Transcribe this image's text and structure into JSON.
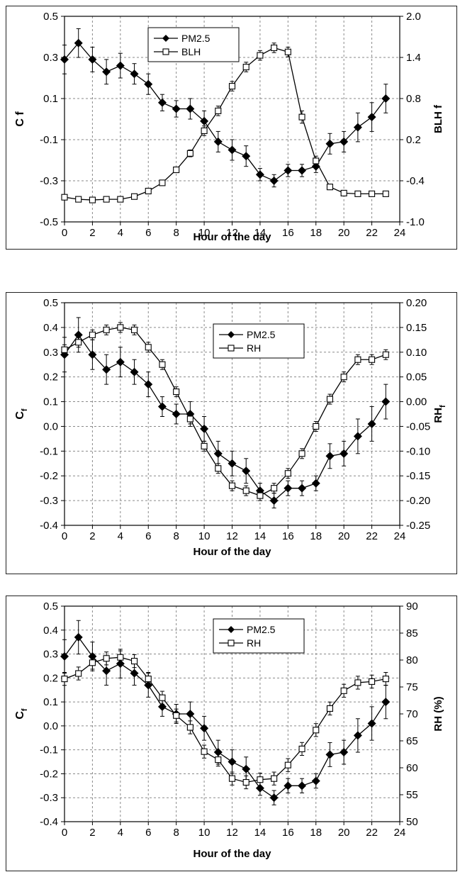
{
  "chart_data": [
    {
      "type": "line",
      "xlabel": "Hour of the day",
      "ylabel": "C f",
      "ylabel_sub": "",
      "y2label": "BLH f",
      "y2label_sub": "",
      "xlim": [
        0,
        24
      ],
      "ylim": [
        -0.5,
        0.5
      ],
      "y2lim": [
        -1.0,
        2.0
      ],
      "xticks": [
        "0",
        "2",
        "4",
        "6",
        "8",
        "10",
        "12",
        "14",
        "16",
        "18",
        "20",
        "22",
        "24"
      ],
      "yticks": [
        "-0.5",
        "-0.3",
        "-0.1",
        "0.1",
        "0.3",
        "0.5"
      ],
      "y2ticks": [
        "-1.0",
        "-0.4",
        "0.2",
        "0.8",
        "1.4",
        "2.0"
      ],
      "grid": true,
      "legend": "top-center",
      "series": [
        {
          "name": "PM2.5",
          "marker": "filled-diamond",
          "axis": "left",
          "x": [
            0,
            1,
            2,
            3,
            4,
            5,
            6,
            7,
            8,
            9,
            10,
            11,
            12,
            13,
            14,
            15,
            16,
            17,
            18,
            19,
            20,
            21,
            22,
            23
          ],
          "values": [
            0.29,
            0.37,
            0.29,
            0.23,
            0.26,
            0.22,
            0.17,
            0.08,
            0.05,
            0.05,
            -0.01,
            -0.11,
            -0.15,
            -0.18,
            -0.27,
            -0.3,
            -0.25,
            -0.25,
            -0.23,
            -0.12,
            -0.11,
            -0.04,
            0.01,
            0.1
          ],
          "errors": [
            0.07,
            0.07,
            0.06,
            0.06,
            0.06,
            0.05,
            0.05,
            0.04,
            0.04,
            0.05,
            0.05,
            0.05,
            0.05,
            0.05,
            0.03,
            0.03,
            0.03,
            0.03,
            0.03,
            0.05,
            0.05,
            0.07,
            0.07,
            0.07
          ]
        },
        {
          "name": "BLH",
          "marker": "open-square",
          "axis": "right",
          "x": [
            0,
            1,
            2,
            3,
            4,
            5,
            6,
            7,
            8,
            9,
            10,
            11,
            12,
            13,
            14,
            15,
            16,
            17,
            18,
            19,
            20,
            21,
            22,
            23
          ],
          "values": [
            -0.64,
            -0.67,
            -0.68,
            -0.67,
            -0.67,
            -0.63,
            -0.55,
            -0.43,
            -0.24,
            0.0,
            0.33,
            0.62,
            0.98,
            1.26,
            1.43,
            1.54,
            1.48,
            0.53,
            -0.11,
            -0.49,
            -0.58,
            -0.59,
            -0.59,
            -0.59
          ],
          "errors": [
            0.03,
            0.03,
            0.03,
            0.03,
            0.03,
            0.03,
            0.03,
            0.04,
            0.04,
            0.05,
            0.07,
            0.07,
            0.07,
            0.07,
            0.07,
            0.07,
            0.07,
            0.09,
            0.07,
            0.04,
            0.03,
            0.03,
            0.03,
            0.03
          ]
        }
      ]
    },
    {
      "type": "line",
      "xlabel": "Hour of the day",
      "ylabel": "C",
      "ylabel_sub": "f",
      "y2label": "RH",
      "y2label_sub": "f",
      "xlim": [
        0,
        24
      ],
      "ylim": [
        -0.4,
        0.5
      ],
      "y2lim": [
        -0.25,
        0.2
      ],
      "xticks": [
        "0",
        "2",
        "4",
        "6",
        "8",
        "10",
        "12",
        "14",
        "16",
        "18",
        "20",
        "22",
        "24"
      ],
      "yticks": [
        "-0.4",
        "-0.3",
        "-0.2",
        "-0.1",
        "0.0",
        "0.1",
        "0.2",
        "0.3",
        "0.4",
        "0.5"
      ],
      "y2ticks": [
        "-0.25",
        "-0.20",
        "-0.15",
        "-0.10",
        "-0.05",
        "0.00",
        "0.05",
        "0.10",
        "0.15",
        "0.20"
      ],
      "grid": true,
      "legend": "top-center",
      "series": [
        {
          "name": "PM2.5",
          "marker": "filled-diamond",
          "axis": "left",
          "x": [
            0,
            1,
            2,
            3,
            4,
            5,
            6,
            7,
            8,
            9,
            10,
            11,
            12,
            13,
            14,
            15,
            16,
            17,
            18,
            19,
            20,
            21,
            22,
            23
          ],
          "values": [
            0.29,
            0.37,
            0.29,
            0.23,
            0.26,
            0.22,
            0.17,
            0.08,
            0.05,
            0.05,
            -0.01,
            -0.11,
            -0.15,
            -0.18,
            -0.26,
            -0.3,
            -0.25,
            -0.25,
            -0.23,
            -0.12,
            -0.11,
            -0.04,
            0.01,
            0.1
          ],
          "errors": [
            0.07,
            0.07,
            0.06,
            0.06,
            0.06,
            0.05,
            0.05,
            0.04,
            0.04,
            0.05,
            0.05,
            0.05,
            0.05,
            0.05,
            0.03,
            0.03,
            0.03,
            0.03,
            0.03,
            0.05,
            0.05,
            0.07,
            0.07,
            0.07
          ]
        },
        {
          "name": "RH",
          "marker": "open-square",
          "axis": "right",
          "x": [
            0,
            1,
            2,
            3,
            4,
            5,
            6,
            7,
            8,
            9,
            10,
            11,
            12,
            13,
            14,
            15,
            16,
            17,
            18,
            19,
            20,
            21,
            22,
            23
          ],
          "values": [
            0.105,
            0.12,
            0.135,
            0.145,
            0.15,
            0.145,
            0.11,
            0.075,
            0.02,
            -0.035,
            -0.09,
            -0.135,
            -0.17,
            -0.18,
            -0.19,
            -0.175,
            -0.145,
            -0.105,
            -0.05,
            0.005,
            0.05,
            0.085,
            0.085,
            0.095
          ],
          "errors": [
            0.01,
            0.01,
            0.01,
            0.01,
            0.01,
            0.01,
            0.01,
            0.01,
            0.01,
            0.01,
            0.01,
            0.01,
            0.01,
            0.01,
            0.01,
            0.01,
            0.01,
            0.01,
            0.01,
            0.01,
            0.01,
            0.01,
            0.01,
            0.01
          ]
        }
      ]
    },
    {
      "type": "line",
      "xlabel": "Hour of the day",
      "ylabel": "C",
      "ylabel_sub": "f",
      "y2label": "RH (%)",
      "y2label_sub": "",
      "xlim": [
        0,
        24
      ],
      "ylim": [
        -0.4,
        0.5
      ],
      "y2lim": [
        50,
        90
      ],
      "xticks": [
        "0",
        "2",
        "4",
        "6",
        "8",
        "10",
        "12",
        "14",
        "16",
        "18",
        "20",
        "22",
        "24"
      ],
      "yticks": [
        "-0.4",
        "-0.3",
        "-0.2",
        "-0.1",
        "0.0",
        "0.1",
        "0.2",
        "0.3",
        "0.4",
        "0.5"
      ],
      "y2ticks": [
        "50",
        "55",
        "60",
        "65",
        "70",
        "75",
        "80",
        "85",
        "90"
      ],
      "grid": true,
      "legend": "top-center",
      "series": [
        {
          "name": "PM2.5",
          "marker": "filled-diamond",
          "axis": "left",
          "x": [
            0,
            1,
            2,
            3,
            4,
            5,
            6,
            7,
            8,
            9,
            10,
            11,
            12,
            13,
            14,
            15,
            16,
            17,
            18,
            19,
            20,
            21,
            22,
            23
          ],
          "values": [
            0.29,
            0.37,
            0.29,
            0.23,
            0.26,
            0.22,
            0.17,
            0.08,
            0.05,
            0.05,
            -0.01,
            -0.11,
            -0.15,
            -0.18,
            -0.26,
            -0.3,
            -0.25,
            -0.25,
            -0.23,
            -0.12,
            -0.11,
            -0.04,
            0.01,
            0.1
          ],
          "errors": [
            0.07,
            0.07,
            0.06,
            0.06,
            0.06,
            0.05,
            0.05,
            0.04,
            0.04,
            0.05,
            0.05,
            0.05,
            0.05,
            0.05,
            0.03,
            0.03,
            0.03,
            0.03,
            0.03,
            0.05,
            0.05,
            0.07,
            0.07,
            0.07
          ]
        },
        {
          "name": "RH",
          "marker": "open-square",
          "axis": "right",
          "x": [
            0,
            1,
            2,
            3,
            4,
            5,
            6,
            7,
            8,
            9,
            10,
            11,
            12,
            13,
            14,
            15,
            16,
            17,
            18,
            19,
            20,
            21,
            22,
            23
          ],
          "values": [
            76.5,
            77.5,
            79.5,
            80.3,
            80.5,
            79.8,
            76.5,
            73,
            69.7,
            67.5,
            63,
            61.5,
            58,
            57.3,
            57.8,
            58,
            60.5,
            63.5,
            67,
            71,
            74.3,
            75.8,
            76,
            76.5
          ],
          "errors": [
            1.2,
            1.2,
            1.2,
            1.2,
            1.2,
            1.2,
            1.2,
            1.2,
            1.2,
            1.2,
            1.2,
            1.2,
            1.2,
            1.2,
            1.2,
            1.2,
            1.2,
            1.2,
            1.2,
            1.2,
            1.2,
            1.2,
            1.2,
            1.2
          ]
        }
      ]
    }
  ]
}
